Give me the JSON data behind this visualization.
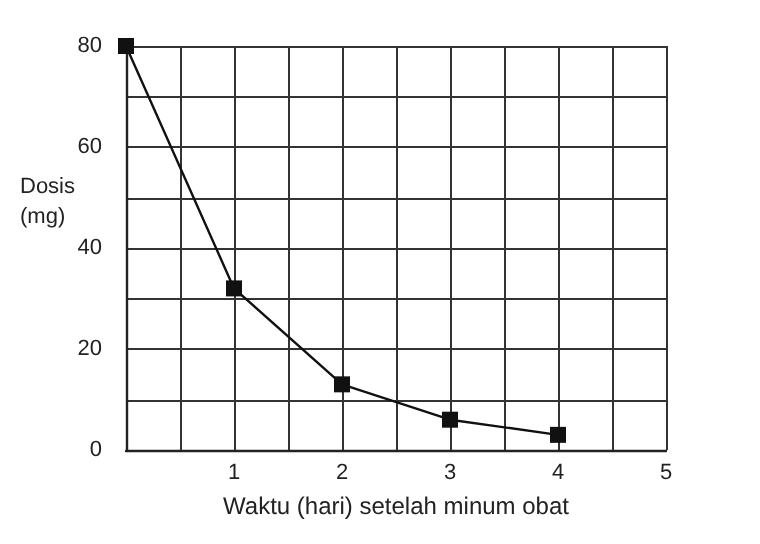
{
  "chart_data": {
    "type": "line",
    "xlabel": "Waktu (hari) setelah minum obat",
    "ylabel": "Dosis (mg)",
    "x": [
      0,
      1,
      2,
      3,
      4
    ],
    "series": [
      {
        "color": "#111111",
        "values": [
          80,
          32,
          13,
          6,
          3
        ]
      }
    ],
    "xlim": [
      0,
      5
    ],
    "xticks": [
      {
        "value": 0,
        "label": null
      },
      {
        "value": 0.5,
        "label": null
      },
      1,
      {
        "value": 1.5,
        "label": null
      },
      2,
      {
        "value": 2.5,
        "label": null
      },
      3,
      {
        "value": 3.5,
        "label": null
      },
      4,
      {
        "value": 4.5,
        "label": null
      },
      5
    ],
    "ylim": [
      0,
      80
    ],
    "yticks": [
      0,
      {
        "value": 10,
        "label": null
      },
      20,
      {
        "value": 30,
        "label": null
      },
      40,
      {
        "value": 50,
        "label": null
      },
      60,
      {
        "value": 70,
        "label": null
      },
      80
    ],
    "grid": true,
    "marker": "square",
    "line_style": "solid"
  }
}
